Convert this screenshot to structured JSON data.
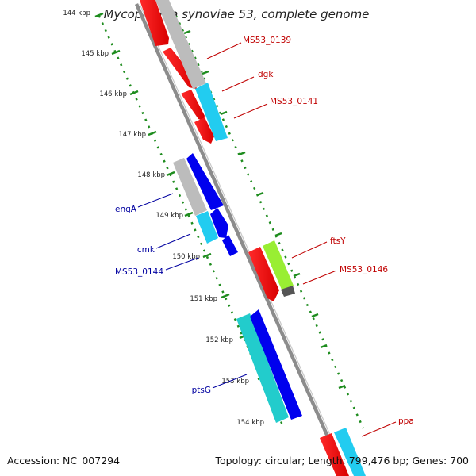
{
  "title": "Mycoplasma synoviae 53, complete genome",
  "footer": {
    "accession": "Accession: NC_007294",
    "summary": "Topology: circular; Length: 799,476 bp; Genes: 700"
  },
  "ruler": {
    "ticks": [
      "144 kbp",
      "145 kbp",
      "146 kbp",
      "147 kbp",
      "148 kbp",
      "149 kbp",
      "150 kbp",
      "151 kbp",
      "152 kbp",
      "153 kbp",
      "154 kbp"
    ]
  },
  "colors": {
    "backbone": "#8c8c8c",
    "dots": "#1e8c1e",
    "red_label": "#c00000",
    "blue_label": "#0000a0",
    "red": "#ff0000",
    "blue": "#0000ee",
    "lightblue": "#22ccf0",
    "gray": "#b8b8b8",
    "teal": "#22cccc",
    "lime": "#99ee33",
    "darkgray": "#555555"
  },
  "genes_plus": [
    {
      "label": "MS53_0139",
      "color": "gray"
    },
    {
      "label": "dgk",
      "color": "lightblue"
    },
    {
      "label": "MS53_0141",
      "color": "lightblue"
    },
    {
      "label": "ftsY",
      "color": "lime"
    },
    {
      "label": "MS53_0146",
      "color": "darkgray"
    },
    {
      "label": "ppa",
      "color": "teal"
    }
  ],
  "genes_minus": [
    {
      "label": "engA",
      "color": "gray"
    },
    {
      "label": "cmk",
      "color": "lightblue"
    },
    {
      "label": "MS53_0144",
      "color": "lightblue"
    },
    {
      "label": "ptsG",
      "color": "teal"
    }
  ]
}
